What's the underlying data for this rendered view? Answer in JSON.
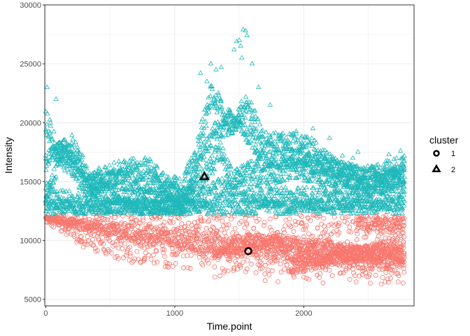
{
  "chart_data": {
    "type": "scatter",
    "xlabel": "Time.point",
    "ylabel": "Intensity",
    "xlim": [
      -8,
      2855
    ],
    "ylim": [
      4450,
      30000
    ],
    "x_ticks": [
      0,
      1000,
      2000
    ],
    "x_tick_labels": [
      "0",
      "1000",
      "2000"
    ],
    "y_ticks": [
      5000,
      10000,
      15000,
      20000,
      25000,
      30000
    ],
    "y_tick_labels": [
      "5000",
      "10000",
      "15000",
      "20000",
      "25000",
      "30000"
    ],
    "grid": true,
    "legend": {
      "title": "cluster",
      "position": "right",
      "entries": [
        {
          "label": "1",
          "shape": "circle"
        },
        {
          "label": "2",
          "shape": "triangle"
        }
      ]
    },
    "colors": {
      "1": "#F8766D",
      "2": "#1FB8BA"
    },
    "x_max_observed": 2780,
    "threshold": 12200,
    "series": [
      {
        "name": "1",
        "shape": "circle",
        "bands": [
          {
            "lower": [
              [
                0,
                11500
              ],
              [
                300,
                9300
              ],
              [
                700,
                8000
              ],
              [
                1100,
                7600
              ],
              [
                1500,
                7300
              ],
              [
                2000,
                6700
              ],
              [
                2780,
                6200
              ]
            ],
            "upper": [
              [
                0,
                12200
              ],
              [
                2780,
                12200
              ]
            ]
          },
          {
            "lower": [
              [
                0,
                11800
              ],
              [
                500,
                10300
              ],
              [
                1000,
                9300
              ],
              [
                1600,
                8500
              ],
              [
                2200,
                7800
              ],
              [
                2780,
                7300
              ]
            ],
            "upper": [
              [
                0,
                12000
              ],
              [
                800,
                11200
              ],
              [
                1500,
                10400
              ],
              [
                2200,
                9800
              ],
              [
                2780,
                9400
              ]
            ]
          },
          {
            "lower": [
              [
                1300,
                8300
              ],
              [
                1600,
                9500
              ],
              [
                2000,
                8700
              ],
              [
                2400,
                8200
              ],
              [
                2780,
                8000
              ]
            ],
            "upper": [
              [
                1300,
                9200
              ],
              [
                1600,
                10700
              ],
              [
                2000,
                10200
              ],
              [
                2400,
                9600
              ],
              [
                2780,
                9200
              ]
            ]
          },
          {
            "lower": [
              [
                1900,
                7100
              ],
              [
                2300,
                8000
              ],
              [
                2780,
                8700
              ]
            ],
            "upper": [
              [
                1900,
                8300
              ],
              [
                2300,
                9200
              ],
              [
                2780,
                10400
              ]
            ]
          },
          {
            "lower": [
              [
                2400,
                10500
              ],
              [
                2780,
                10600
              ]
            ],
            "upper": [
              [
                2400,
                12100
              ],
              [
                2780,
                12100
              ]
            ]
          }
        ],
        "outliers": [
          [
            1310,
            6900
          ],
          [
            1350,
            7000
          ],
          [
            1380,
            7300
          ],
          [
            1460,
            7600
          ],
          [
            1700,
            6600
          ],
          [
            1800,
            6500
          ],
          [
            2020,
            6800
          ],
          [
            2150,
            6400
          ],
          [
            2550,
            11600
          ],
          [
            2700,
            11700
          ],
          [
            2760,
            11300
          ],
          [
            2600,
            6300
          ]
        ],
        "centroid": [
          1570,
          9100
        ]
      },
      {
        "name": "2",
        "shape": "triangle",
        "ridges": [
          {
            "band": 1800,
            "peaks": [
              [
                0,
                15000
              ],
              [
                150,
                19000
              ],
              [
                330,
                15500
              ],
              [
                520,
                16200
              ],
              [
                650,
                16000
              ],
              [
                780,
                15800
              ],
              [
                950,
                15200
              ],
              [
                1050,
                14500
              ],
              [
                1150,
                15000
              ],
              [
                1350,
                18500
              ],
              [
                1450,
                16000
              ],
              [
                1560,
                17000
              ],
              [
                1700,
                16500
              ],
              [
                1950,
                17000
              ],
              [
                2200,
                16300
              ],
              [
                2500,
                15300
              ],
              [
                2780,
                16500
              ]
            ]
          },
          {
            "band": 2000,
            "peaks": [
              [
                0,
                21000
              ],
              [
                60,
                19600
              ],
              [
                150,
                17800
              ],
              [
                200,
                19000
              ],
              [
                350,
                16000
              ],
              [
                500,
                16500
              ],
              [
                650,
                17000
              ],
              [
                800,
                17200
              ],
              [
                900,
                15800
              ],
              [
                1050,
                15300
              ],
              [
                1150,
                17500
              ],
              [
                1280,
                23500
              ],
              [
                1450,
                20800
              ],
              [
                1560,
                22500
              ],
              [
                1700,
                19200
              ],
              [
                1900,
                19500
              ],
              [
                2100,
                18500
              ],
              [
                2300,
                16600
              ],
              [
                2500,
                16300
              ],
              [
                2780,
                17300
              ]
            ]
          },
          {
            "band": 1600,
            "peaks": [
              [
                0,
                17500
              ],
              [
                100,
                18500
              ],
              [
                300,
                15500
              ],
              [
                600,
                14500
              ],
              [
                900,
                14200
              ],
              [
                1050,
                13000
              ],
              [
                1150,
                16500
              ],
              [
                1300,
                20000
              ],
              [
                1500,
                21000
              ],
              [
                1700,
                17500
              ],
              [
                1900,
                18000
              ],
              [
                2100,
                17200
              ],
              [
                2400,
                16500
              ],
              [
                2780,
                16000
              ]
            ]
          },
          {
            "band": 1800,
            "peaks": [
              [
                0,
                14500
              ],
              [
                300,
                14000
              ],
              [
                600,
                13800
              ],
              [
                900,
                13500
              ],
              [
                1200,
                14500
              ],
              [
                1400,
                15500
              ],
              [
                1550,
                15000
              ],
              [
                1800,
                14500
              ],
              [
                2100,
                14500
              ],
              [
                2400,
                14500
              ],
              [
                2780,
                14800
              ]
            ]
          }
        ],
        "outliers": [
          [
            10,
            23000
          ],
          [
            80,
            22000
          ],
          [
            1200,
            24200
          ],
          [
            1250,
            23500
          ],
          [
            1280,
            25000
          ],
          [
            1320,
            24500
          ],
          [
            1360,
            24700
          ],
          [
            1500,
            27000
          ],
          [
            1510,
            26500
          ],
          [
            1520,
            25500
          ],
          [
            1530,
            27900
          ],
          [
            1550,
            27800
          ],
          [
            1560,
            27400
          ],
          [
            1600,
            25000
          ],
          [
            1650,
            23000
          ],
          [
            1740,
            21500
          ],
          [
            2070,
            19500
          ],
          [
            2200,
            18700
          ],
          [
            2300,
            17200
          ],
          [
            2380,
            17000
          ],
          [
            2620,
            16400
          ],
          [
            2660,
            17300
          ],
          [
            2700,
            16900
          ],
          [
            2750,
            17600
          ],
          [
            1460,
            26200
          ],
          [
            1480,
            26900
          ],
          [
            2420,
            17500
          ]
        ],
        "centroid": [
          1230,
          15400
        ]
      }
    ]
  }
}
